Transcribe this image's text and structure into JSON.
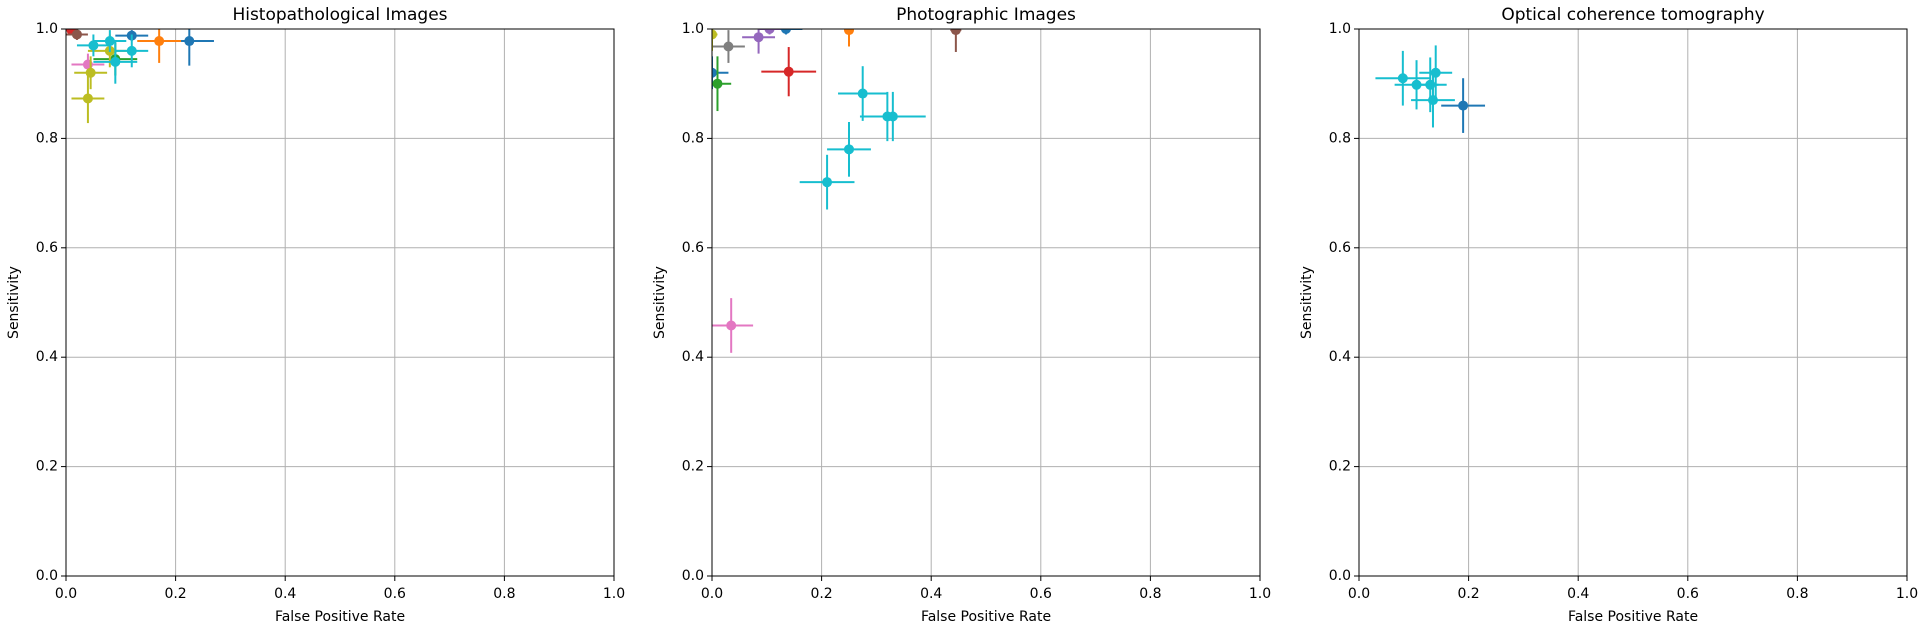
{
  "chart_data": [
    {
      "type": "scatter",
      "title": "Histopathological Images",
      "xlabel": "False Positive Rate",
      "ylabel": "Sensitivity",
      "xlim": [
        0,
        1
      ],
      "ylim": [
        0,
        1
      ],
      "xticks": [
        {
          "value": 0,
          "label": "0.0"
        },
        0.2,
        0.4,
        0.6,
        0.8,
        {
          "value": 1,
          "label": "1.0"
        }
      ],
      "yticks": [
        {
          "value": 0,
          "label": "0.0"
        },
        0.2,
        0.4,
        0.6,
        0.8,
        {
          "value": 1,
          "label": "1.0"
        }
      ],
      "grid": true,
      "series": [
        {
          "color": "#1f77b4",
          "x": [
            0.225,
            0.12
          ],
          "values": [
            0.978,
            0.988
          ],
          "xerr": [
            0.045,
            0.03
          ],
          "yerr": [
            0.045,
            0.01
          ]
        },
        {
          "color": "#ff7f0e",
          "x": [
            0.17
          ],
          "values": [
            0.978
          ],
          "xerr": [
            0.04
          ],
          "yerr": [
            0.04
          ]
        },
        {
          "color": "#2ca02c",
          "x": [
            0.09
          ],
          "values": [
            0.945
          ],
          "xerr": [
            0.04
          ],
          "yerr": [
            0.03
          ]
        },
        {
          "color": "#d62728",
          "x": [
            0.01
          ],
          "values": [
            0.998
          ],
          "xerr": [
            0.01
          ],
          "yerr": [
            0.005
          ]
        },
        {
          "color": "#8c564b",
          "x": [
            0.02
          ],
          "values": [
            0.99
          ],
          "xerr": [
            0.02
          ],
          "yerr": [
            0.01
          ]
        },
        {
          "color": "#e377c2",
          "x": [
            0.04
          ],
          "values": [
            0.935
          ],
          "xerr": [
            0.03
          ],
          "yerr": [
            0.02
          ]
        },
        {
          "color": "#bcbd22",
          "x": [
            0.04,
            0.045,
            0.08
          ],
          "values": [
            0.873,
            0.92,
            0.96
          ],
          "xerr": [
            0.03,
            0.03,
            0.04
          ],
          "yerr": [
            0.045,
            0.03,
            0.03
          ]
        },
        {
          "color": "#17becf",
          "x": [
            0.08,
            0.12,
            0.09,
            0.05
          ],
          "values": [
            0.978,
            0.96,
            0.94,
            0.97
          ],
          "xerr": [
            0.03,
            0.03,
            0.04,
            0.03
          ],
          "yerr": [
            0.02,
            0.03,
            0.04,
            0.02
          ]
        }
      ]
    },
    {
      "type": "scatter",
      "title": "Photographic Images",
      "xlabel": "False Positive Rate",
      "ylabel": "Sensitivity",
      "xlim": [
        0,
        1
      ],
      "ylim": [
        0,
        1
      ],
      "xticks": [
        {
          "value": 0,
          "label": "0.0"
        },
        0.2,
        0.4,
        0.6,
        0.8,
        {
          "value": 1,
          "label": "1.0"
        }
      ],
      "yticks": [
        {
          "value": 0,
          "label": "0.0"
        },
        0.2,
        0.4,
        0.6,
        0.8,
        {
          "value": 1,
          "label": "1.0"
        }
      ],
      "grid": true,
      "series": [
        {
          "color": "#1f77b4",
          "x": [
            0.0,
            0.135
          ],
          "values": [
            0.92,
            1.0
          ],
          "xerr": [
            0.03,
            0.03
          ],
          "yerr": [
            0.03,
            0.01
          ]
        },
        {
          "color": "#ff7f0e",
          "x": [
            0.25
          ],
          "values": [
            0.998
          ],
          "xerr": [
            0.005
          ],
          "yerr": [
            0.03
          ]
        },
        {
          "color": "#2ca02c",
          "x": [
            0.01
          ],
          "values": [
            0.9
          ],
          "xerr": [
            0.025
          ],
          "yerr": [
            0.05
          ]
        },
        {
          "color": "#d62728",
          "x": [
            0.14
          ],
          "values": [
            0.922
          ],
          "xerr": [
            0.05
          ],
          "yerr": [
            0.045
          ]
        },
        {
          "color": "#9467bd",
          "x": [
            0.085,
            0.105
          ],
          "values": [
            0.985,
            1.0
          ],
          "xerr": [
            0.03,
            0.02
          ],
          "yerr": [
            0.03,
            0.01
          ]
        },
        {
          "color": "#8c564b",
          "x": [
            0.445
          ],
          "values": [
            0.998
          ],
          "xerr": [
            0.01
          ],
          "yerr": [
            0.04
          ]
        },
        {
          "color": "#e377c2",
          "x": [
            0.035
          ],
          "values": [
            0.458
          ],
          "xerr": [
            0.04
          ],
          "yerr": [
            0.05
          ]
        },
        {
          "color": "#7f7f7f",
          "x": [
            0.03
          ],
          "values": [
            0.968
          ],
          "xerr": [
            0.03
          ],
          "yerr": [
            0.03
          ]
        },
        {
          "color": "#bcbd22",
          "x": [
            0.0
          ],
          "values": [
            0.99
          ],
          "xerr": [
            0.01
          ],
          "yerr": [
            0.03
          ]
        },
        {
          "color": "#17becf",
          "x": [
            0.21,
            0.25,
            0.275,
            0.32,
            0.33
          ],
          "values": [
            0.72,
            0.78,
            0.882,
            0.84,
            0.84
          ],
          "xerr": [
            0.05,
            0.04,
            0.045,
            0.04,
            0.06
          ],
          "yerr": [
            0.05,
            0.05,
            0.05,
            0.045,
            0.045
          ]
        }
      ]
    },
    {
      "type": "scatter",
      "title": "Optical coherence tomography",
      "xlabel": "False Positive Rate",
      "ylabel": "Sensitivity",
      "xlim": [
        0,
        1
      ],
      "ylim": [
        0,
        1
      ],
      "xticks": [
        {
          "value": 0,
          "label": "0.0"
        },
        0.2,
        0.4,
        0.6,
        0.8,
        {
          "value": 1,
          "label": "1.0"
        }
      ],
      "yticks": [
        {
          "value": 0,
          "label": "0.0"
        },
        0.2,
        0.4,
        0.6,
        0.8,
        {
          "value": 1,
          "label": "1.0"
        }
      ],
      "grid": true,
      "series": [
        {
          "color": "#17becf",
          "x": [
            0.08,
            0.105,
            0.13,
            0.135,
            0.14
          ],
          "values": [
            0.91,
            0.898,
            0.898,
            0.87,
            0.92
          ],
          "xerr": [
            0.05,
            0.04,
            0.03,
            0.04,
            0.03
          ],
          "yerr": [
            0.05,
            0.045,
            0.05,
            0.05,
            0.05
          ]
        },
        {
          "color": "#1f77b4",
          "x": [
            0.19
          ],
          "values": [
            0.86
          ],
          "xerr": [
            0.04
          ],
          "yerr": [
            0.05
          ]
        }
      ]
    }
  ]
}
